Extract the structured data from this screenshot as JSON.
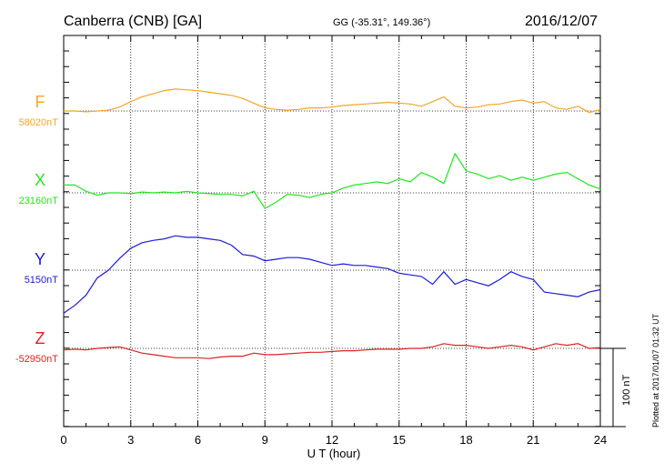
{
  "header": {
    "station": "Canberra (CNB)  [GA]",
    "coords": "GG (-35.31°, 149.36°)",
    "date": "2016/12/07"
  },
  "plotted_note": "Plotted at 2017/01/07 01:32 UT",
  "scale_bar_label": "100 nT",
  "chart_data": {
    "type": "line",
    "title": "Canberra (CNB)  [GA]",
    "xlabel": "U T (hour)",
    "xlim": [
      0,
      24
    ],
    "x_ticks": [
      0,
      3,
      6,
      9,
      12,
      15,
      18,
      21,
      24
    ],
    "grid": true,
    "scale_bar_nT": 100,
    "series": [
      {
        "name": "F",
        "baseline": "58020nT",
        "color": "#f5a623",
        "x": [
          0,
          0.5,
          1,
          1.5,
          2,
          2.5,
          3,
          3.5,
          4,
          4.5,
          5,
          5.5,
          6,
          6.5,
          7,
          7.5,
          8,
          8.5,
          9,
          9.5,
          10,
          10.5,
          11,
          11.5,
          12,
          12.5,
          13,
          13.5,
          14,
          14.5,
          15,
          15.5,
          16,
          16.5,
          17,
          17.5,
          18,
          18.5,
          19,
          19.5,
          20,
          20.5,
          21,
          21.5,
          22,
          22.5,
          23,
          23.5,
          24
        ],
        "y": [
          0,
          0,
          -1,
          0,
          1,
          5,
          12,
          18,
          22,
          26,
          28,
          27,
          26,
          24,
          22,
          20,
          16,
          10,
          4,
          2,
          1,
          2,
          4,
          4,
          5,
          7,
          8,
          9,
          10,
          11,
          10,
          9,
          6,
          12,
          18,
          6,
          4,
          5,
          8,
          9,
          12,
          14,
          10,
          12,
          4,
          2,
          6,
          -2,
          2
        ]
      },
      {
        "name": "X",
        "baseline": "23160nT",
        "color": "#22e622",
        "x": [
          0,
          0.5,
          1,
          1.5,
          2,
          2.5,
          3,
          3.5,
          4,
          4.5,
          5,
          5.5,
          6,
          6.5,
          7,
          7.5,
          8,
          8.5,
          9,
          9.5,
          10,
          10.5,
          11,
          11.5,
          12,
          12.5,
          13,
          13.5,
          14,
          14.5,
          15,
          15.5,
          16,
          16.5,
          17,
          17.5,
          18,
          18.5,
          19,
          19.5,
          20,
          20.5,
          21,
          21.5,
          22,
          22.5,
          23,
          23.5,
          24
        ],
        "y": [
          10,
          10,
          2,
          -3,
          0,
          0,
          -1,
          1,
          0,
          1,
          0,
          2,
          0,
          -1,
          -2,
          -2,
          -4,
          2,
          -20,
          -12,
          -2,
          -3,
          -6,
          -2,
          0,
          6,
          10,
          12,
          14,
          12,
          18,
          14,
          26,
          20,
          12,
          50,
          28,
          24,
          18,
          22,
          16,
          20,
          16,
          20,
          24,
          26,
          18,
          10,
          5
        ]
      },
      {
        "name": "Y",
        "baseline": "5150nT",
        "color": "#1c1cd6",
        "x": [
          0,
          0.5,
          1,
          1.5,
          2,
          2.5,
          3,
          3.5,
          4,
          4.5,
          5,
          5.5,
          6,
          6.5,
          7,
          7.5,
          8,
          8.5,
          9,
          9.5,
          10,
          10.5,
          11,
          11.5,
          12,
          12.5,
          13,
          13.5,
          14,
          14.5,
          15,
          15.5,
          16,
          16.5,
          17,
          17.5,
          18,
          18.5,
          19,
          19.5,
          20,
          20.5,
          21,
          21.5,
          22,
          22.5,
          23,
          23.5,
          24
        ],
        "y": [
          -55,
          -45,
          -32,
          -10,
          0,
          15,
          28,
          35,
          38,
          40,
          44,
          42,
          42,
          40,
          38,
          32,
          20,
          18,
          12,
          14,
          16,
          16,
          14,
          10,
          6,
          8,
          6,
          6,
          4,
          2,
          -4,
          -6,
          -8,
          -18,
          -2,
          -18,
          -12,
          -16,
          -20,
          -12,
          -2,
          -8,
          -12,
          -28,
          -30,
          -32,
          -34,
          -28,
          -25
        ]
      },
      {
        "name": "Z",
        "baseline": "-52950nT",
        "color": "#dd2222",
        "x": [
          0,
          0.5,
          1,
          1.5,
          2,
          2.5,
          3,
          3.5,
          4,
          4.5,
          5,
          5.5,
          6,
          6.5,
          7,
          7.5,
          8,
          8.5,
          9,
          9.5,
          10,
          10.5,
          11,
          11.5,
          12,
          12.5,
          13,
          13.5,
          14,
          14.5,
          15,
          15.5,
          16,
          16.5,
          17,
          17.5,
          18,
          18.5,
          19,
          19.5,
          20,
          20.5,
          21,
          21.5,
          22,
          22.5,
          23,
          23.5,
          24
        ],
        "y": [
          -2,
          -1,
          -2,
          0,
          1,
          2,
          -2,
          -6,
          -8,
          -10,
          -12,
          -12,
          -12,
          -13,
          -11,
          -10,
          -10,
          -6,
          -8,
          -8,
          -7,
          -6,
          -5,
          -5,
          -4,
          -3,
          -3,
          -2,
          -1,
          -1,
          -1,
          0,
          0,
          2,
          6,
          4,
          4,
          2,
          0,
          2,
          4,
          2,
          -2,
          2,
          6,
          4,
          6,
          0,
          1
        ]
      }
    ]
  }
}
